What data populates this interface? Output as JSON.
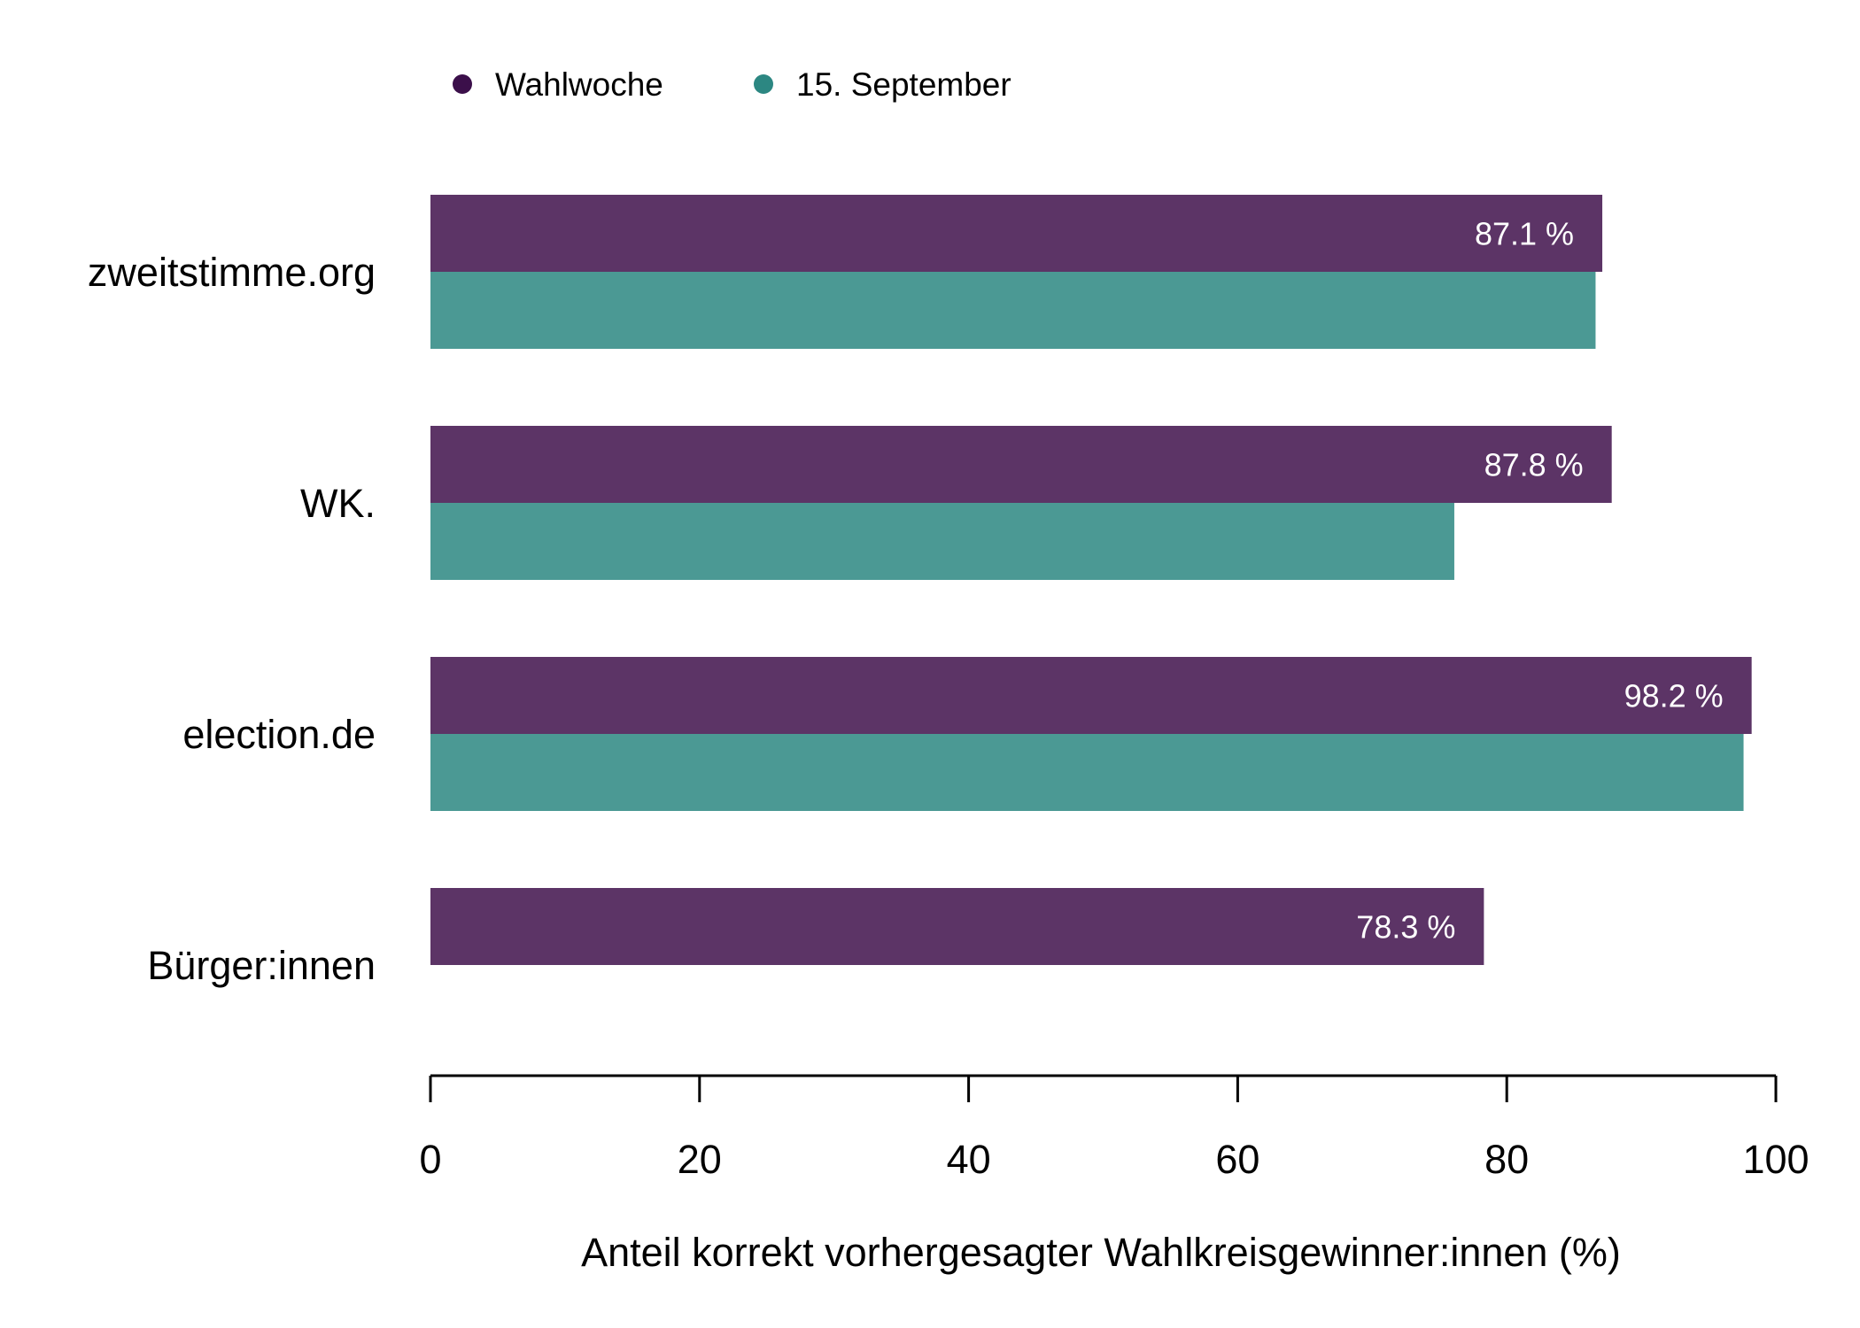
{
  "chart_data": {
    "type": "bar",
    "orientation": "horizontal",
    "categories": [
      "zweitstimme.org",
      "WK.",
      "election.de",
      "Bürger:innen"
    ],
    "series": [
      {
        "name": "Wahlwoche",
        "color": "#5c3466",
        "legend_dot_color": "#3b0f4a",
        "values": [
          87.1,
          87.8,
          98.2,
          78.3
        ],
        "labels": [
          "87.1 %",
          "87.8 %",
          "98.2 %",
          "78.3 %"
        ]
      },
      {
        "name": "15. September",
        "color": "#4b9994",
        "legend_dot_color": "#2c8782",
        "values": [
          86.6,
          76.1,
          97.6,
          null
        ]
      }
    ],
    "xlabel": "Anteil korrekt vorhergesagter Wahlkreisgewinner:innen (%)",
    "xlim": [
      0,
      100
    ],
    "xticks": [
      "0",
      "20",
      "40",
      "60",
      "80",
      "100"
    ],
    "legend_position": "top-left",
    "grid": false
  }
}
